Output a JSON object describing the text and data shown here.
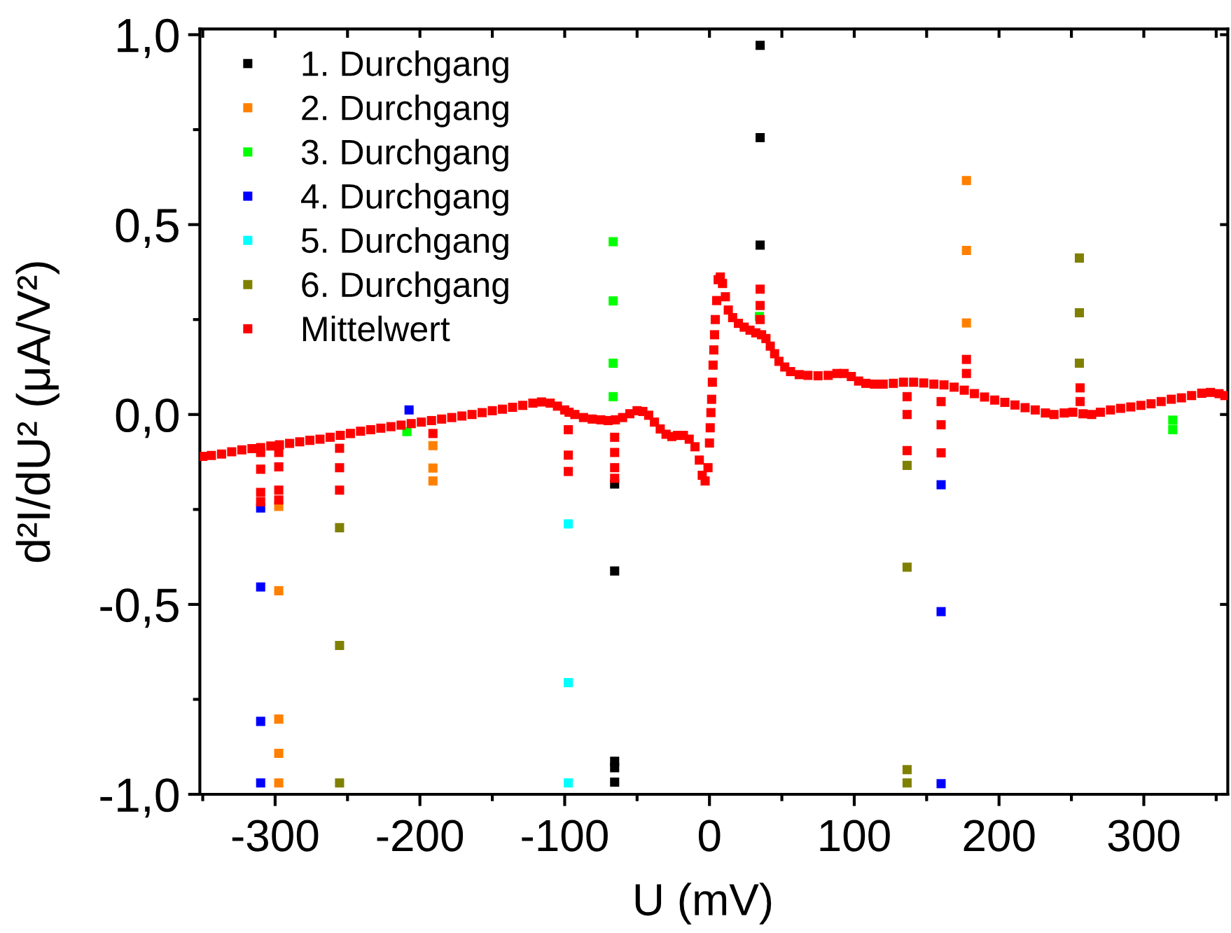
{
  "chart_data": {
    "type": "scatter",
    "xlabel": "U (mV)",
    "ylabel": "d²I/dU² (μA/V²)",
    "marker": "square",
    "legend": "top left",
    "xlim": [
      -352,
      358
    ],
    "ylim": [
      -1.0,
      1.015
    ],
    "xticks": [
      {
        "value": -350,
        "label": null
      },
      -300,
      {
        "value": -250,
        "label": null
      },
      -200,
      {
        "value": -150,
        "label": null
      },
      -100,
      {
        "value": -50,
        "label": null
      },
      0,
      {
        "value": 50,
        "label": null
      },
      100,
      {
        "value": 150,
        "label": null
      },
      200,
      {
        "value": 250,
        "label": null
      },
      300,
      {
        "value": 350,
        "label": null
      }
    ],
    "yticks": [
      {
        "value": -1.0,
        "label": "-1,0"
      },
      {
        "value": -0.75,
        "label": null
      },
      {
        "value": -0.5,
        "label": "-0,5"
      },
      {
        "value": -0.25,
        "label": null
      },
      {
        "value": 0.0,
        "label": "0,0"
      },
      {
        "value": 0.25,
        "label": null
      },
      {
        "value": 0.5,
        "label": "0,5"
      },
      {
        "value": 0.75,
        "label": null
      },
      {
        "value": 1.0,
        "label": "1,0"
      }
    ],
    "series": [
      {
        "name": "1. Durchgang",
        "color": "#000000",
        "x": [
          35,
          35,
          35,
          -65.5,
          -65.5,
          -65.5,
          -65.5,
          -65.5
        ],
        "values": [
          0.972,
          0.729,
          0.446,
          -0.183,
          -0.412,
          -0.913,
          -0.93,
          -0.968
        ]
      },
      {
        "name": "2. Durchgang",
        "color": "#ff8000",
        "x": [
          -297.5,
          -297.5,
          -297.5,
          -297.5,
          -297.5,
          -191,
          -191,
          -191,
          177.5,
          177.5,
          177.5
        ],
        "values": [
          -0.242,
          -0.464,
          -0.802,
          -0.892,
          -0.97,
          -0.082,
          -0.141,
          -0.175,
          0.616,
          0.432,
          0.241
        ]
      },
      {
        "name": "3. Durchgang",
        "color": "#00ff00",
        "x": [
          -66.5,
          -66.5,
          -66.5,
          -66.5,
          34.5,
          -209,
          320,
          320
        ],
        "values": [
          0.455,
          0.299,
          0.135,
          0.047,
          0.258,
          -0.045,
          -0.015,
          -0.04
        ]
      },
      {
        "name": "4. Durchgang",
        "color": "#0000ff",
        "x": [
          -310,
          -310,
          -310,
          -310,
          -207.5,
          160,
          160,
          160
        ],
        "values": [
          -0.246,
          -0.454,
          -0.808,
          -0.97,
          0.012,
          -0.185,
          -0.519,
          -0.972
        ]
      },
      {
        "name": "5. Durchgang",
        "color": "#00ffff",
        "x": [
          -97.5,
          -97.5,
          -97.5
        ],
        "values": [
          -0.288,
          -0.706,
          -0.97
        ]
      },
      {
        "name": "6. Durchgang",
        "color": "#808000",
        "x": [
          -255.5,
          -255.5,
          -255.5,
          136.5,
          136.5,
          136.5,
          136.5,
          255.5,
          255.5,
          255.5
        ],
        "values": [
          -0.298,
          -0.608,
          -0.97,
          -0.134,
          -0.402,
          -0.935,
          -0.97,
          0.412,
          0.268,
          0.135
        ]
      },
      {
        "name": "Mittelwert",
        "color": "#ff0000",
        "x": [
          -350,
          -344,
          -337,
          -330,
          -323,
          -316,
          -310,
          -303,
          -297,
          -290,
          -283,
          -276,
          -269,
          -262,
          -255,
          -248,
          -241,
          -234,
          -227,
          -220,
          -213,
          -206,
          -199,
          -192,
          -185,
          -178,
          -171,
          -164,
          -157,
          -150,
          -143,
          -136,
          -129,
          -122,
          -116,
          -110,
          -105,
          -100,
          -97,
          -93,
          -87,
          -81,
          -75,
          -70,
          -65,
          -60,
          -55,
          -50,
          -46,
          -42,
          -38,
          -34,
          -30,
          -26,
          -22,
          -18,
          -14,
          -10,
          -7,
          -5,
          -3,
          -1,
          0,
          0.5,
          1,
          1.5,
          2,
          2.5,
          3,
          3.5,
          4,
          5,
          6,
          7.5,
          9,
          11,
          13,
          16,
          20,
          24,
          28,
          32,
          36,
          39,
          42,
          45,
          48,
          52,
          56,
          62,
          68,
          75,
          82,
          88,
          93,
          98,
          103,
          108,
          114,
          120,
          127,
          134,
          141,
          148,
          155,
          162,
          169,
          176,
          183,
          190,
          197,
          204,
          211,
          218,
          225,
          232,
          238,
          245,
          251,
          258,
          264,
          270,
          277,
          284,
          291,
          298,
          305,
          312,
          319,
          326,
          333,
          340,
          346,
          352,
          356,
          -310,
          -310,
          -310,
          -310,
          -297.5,
          -297.5,
          -297.5,
          -297.5,
          -255.5,
          -255.5,
          -255.5,
          -191,
          -97.5,
          -97.5,
          -97.5,
          -65.5,
          -65.5,
          -65.5,
          -65.5,
          35,
          35,
          35,
          136.5,
          136.5,
          136.5,
          160,
          160,
          160,
          177.5,
          177.5,
          256,
          256
        ],
        "values": [
          -0.11,
          -0.108,
          -0.104,
          -0.098,
          -0.093,
          -0.09,
          -0.087,
          -0.083,
          -0.08,
          -0.076,
          -0.072,
          -0.068,
          -0.065,
          -0.06,
          -0.055,
          -0.05,
          -0.044,
          -0.04,
          -0.036,
          -0.032,
          -0.028,
          -0.024,
          -0.02,
          -0.016,
          -0.012,
          -0.008,
          -0.004,
          0.0,
          0.005,
          0.01,
          0.014,
          0.019,
          0.024,
          0.03,
          0.033,
          0.03,
          0.022,
          0.012,
          0.006,
          0.0,
          -0.008,
          -0.012,
          -0.014,
          -0.016,
          -0.014,
          -0.008,
          0.002,
          0.01,
          0.008,
          -0.002,
          -0.02,
          -0.038,
          -0.052,
          -0.058,
          -0.055,
          -0.055,
          -0.065,
          -0.085,
          -0.12,
          -0.16,
          -0.175,
          -0.14,
          -0.075,
          -0.035,
          0.005,
          0.04,
          0.085,
          0.13,
          0.17,
          0.21,
          0.25,
          0.3,
          0.355,
          0.362,
          0.345,
          0.31,
          0.275,
          0.255,
          0.24,
          0.23,
          0.222,
          0.215,
          0.21,
          0.2,
          0.18,
          0.16,
          0.14,
          0.125,
          0.113,
          0.105,
          0.103,
          0.102,
          0.103,
          0.108,
          0.108,
          0.1,
          0.088,
          0.082,
          0.08,
          0.08,
          0.082,
          0.085,
          0.085,
          0.083,
          0.08,
          0.078,
          0.072,
          0.064,
          0.055,
          0.046,
          0.038,
          0.032,
          0.025,
          0.018,
          0.012,
          0.004,
          0.0,
          0.004,
          0.006,
          0.002,
          0.0,
          0.006,
          0.012,
          0.016,
          0.02,
          0.024,
          0.028,
          0.034,
          0.04,
          0.044,
          0.05,
          0.056,
          0.058,
          0.055,
          0.05,
          -0.1,
          -0.144,
          -0.205,
          -0.23,
          -0.1,
          -0.138,
          -0.199,
          -0.225,
          -0.089,
          -0.14,
          -0.199,
          -0.05,
          -0.04,
          -0.107,
          -0.15,
          -0.06,
          -0.1,
          -0.14,
          -0.168,
          0.25,
          0.287,
          0.33,
          0.047,
          0.0,
          -0.095,
          0.034,
          -0.027,
          -0.101,
          0.145,
          0.108,
          0.034,
          0.07
        ]
      }
    ]
  }
}
